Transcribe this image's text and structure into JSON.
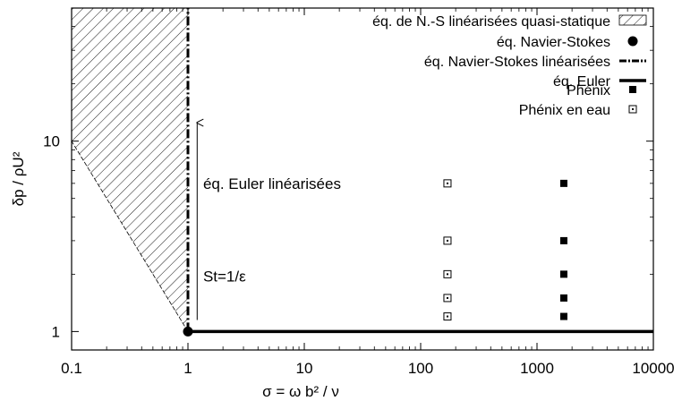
{
  "chart_data": {
    "type": "scatter",
    "xlabel": "σ = ω b² / ν",
    "ylabel": "δp / ρU²",
    "x_scale": "log",
    "y_scale": "log",
    "xlim": [
      0.1,
      10000
    ],
    "ylim": [
      0.8,
      50
    ],
    "x_ticks": [
      {
        "value": 0.1,
        "label": "0.1"
      },
      {
        "value": 1,
        "label": "1"
      },
      {
        "value": 10,
        "label": "10"
      },
      {
        "value": 100,
        "label": "100"
      },
      {
        "value": 1000,
        "label": "1000"
      },
      {
        "value": 10000,
        "label": "10000"
      }
    ],
    "y_ticks": [
      {
        "value": 1,
        "label": "1"
      },
      {
        "value": 10,
        "label": "10"
      }
    ],
    "legend_position": "top-right",
    "series": [
      {
        "name": "éq. de N.-S linéarisées quasi-statique",
        "kind": "hatched-region",
        "polygon": [
          [
            0.1,
            50
          ],
          [
            1,
            50
          ],
          [
            1,
            1
          ],
          [
            0.1,
            10
          ]
        ]
      },
      {
        "name": "éq. Navier-Stokes",
        "kind": "point",
        "points": [
          [
            1,
            1
          ]
        ]
      },
      {
        "name": "éq. Navier-Stokes linéarisées",
        "kind": "vertical-line",
        "x": 1,
        "y_range": [
          1,
          50
        ]
      },
      {
        "name": "éq. Euler",
        "kind": "horizontal-line",
        "y": 1,
        "x_range": [
          1,
          10000
        ]
      },
      {
        "name": "Phénix",
        "kind": "filled-square",
        "points": [
          [
            1700,
            1.2
          ],
          [
            1700,
            1.5
          ],
          [
            1700,
            2.0
          ],
          [
            1700,
            3.0
          ],
          [
            1700,
            6.0
          ]
        ]
      },
      {
        "name": "Phénix en eau",
        "kind": "open-square",
        "points": [
          [
            170,
            1.2
          ],
          [
            170,
            1.5
          ],
          [
            170,
            2.0
          ],
          [
            170,
            3.0
          ],
          [
            170,
            6.0
          ]
        ]
      }
    ],
    "annotations": [
      {
        "text": "éq. Euler linéarisées",
        "x": 1.35,
        "y": 6.0
      },
      {
        "text": "St=1/ε",
        "x": 1.35,
        "y": 1.95
      }
    ],
    "arrow": {
      "x": 1.2,
      "from_y": 1.15,
      "to_y": 12.5
    }
  }
}
